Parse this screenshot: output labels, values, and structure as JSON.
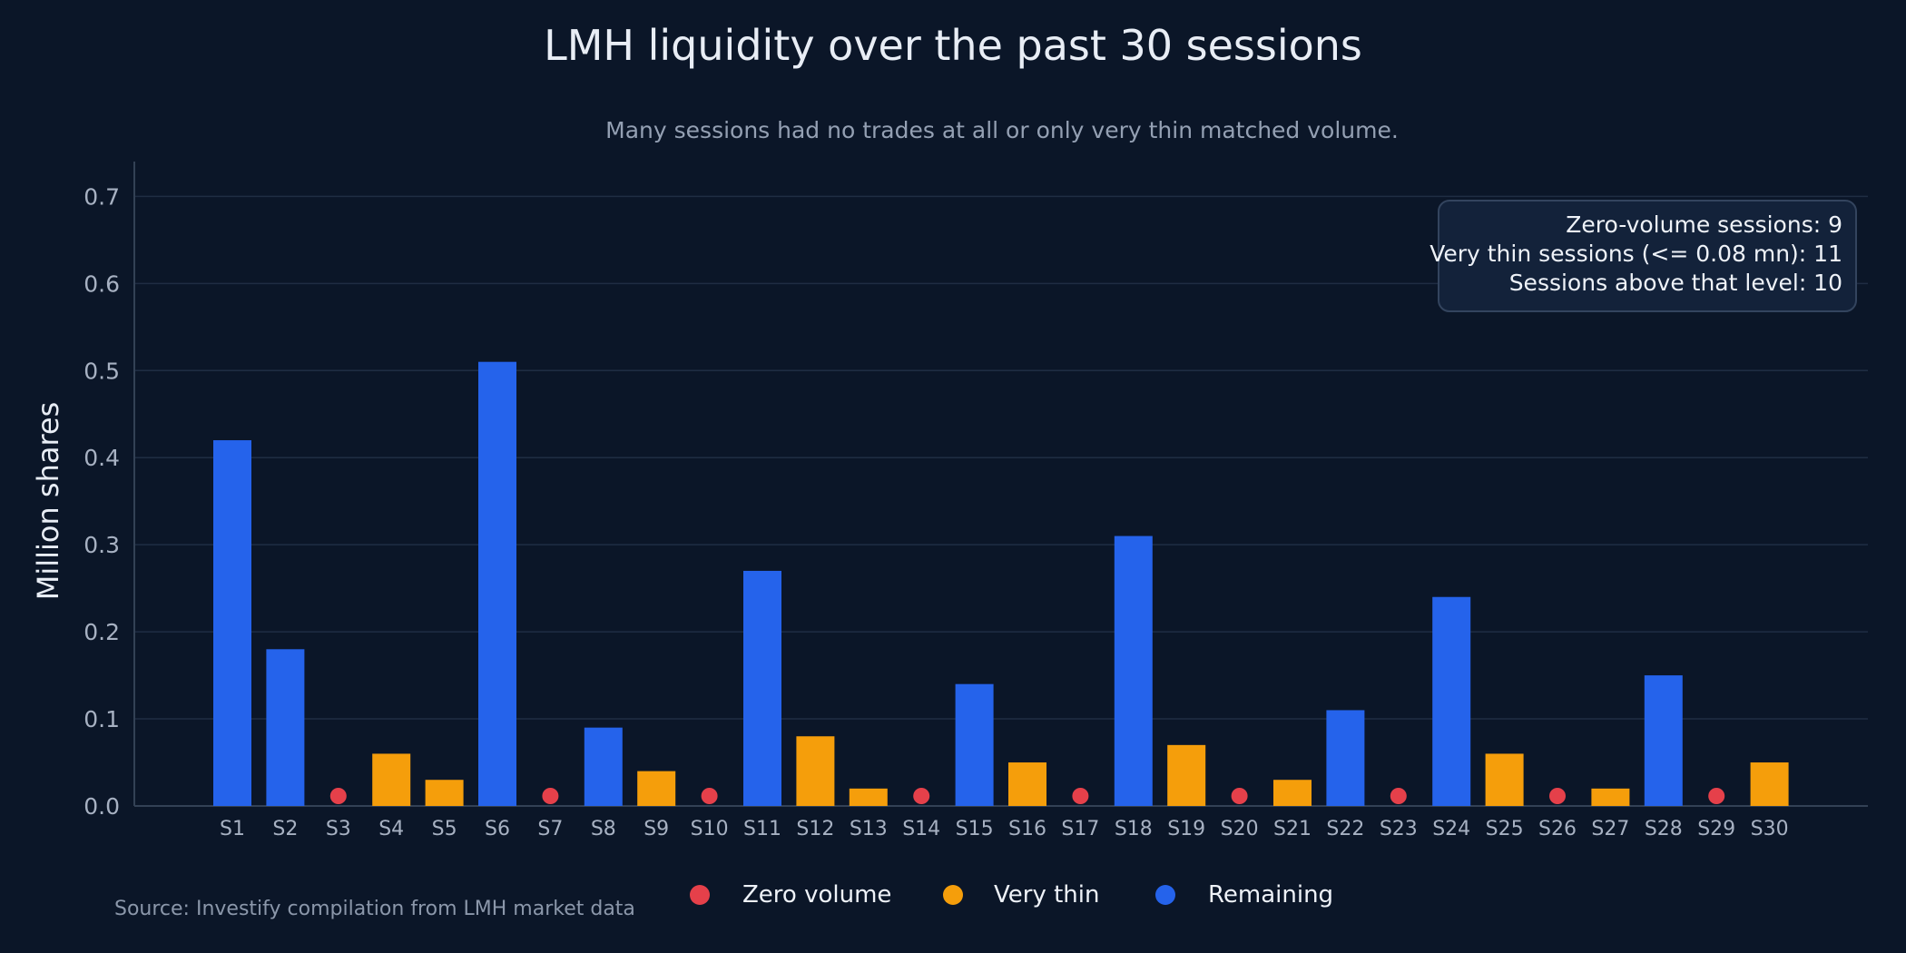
{
  "chart_data": {
    "type": "bar",
    "title": "LMH liquidity over the past 30 sessions",
    "subtitle": "Many sessions had no trades at all or only very thin matched volume.",
    "ylabel": "Million shares",
    "xlabel": "",
    "ylim": [
      0,
      0.74
    ],
    "yticks": [
      "0.0",
      "0.1",
      "0.2",
      "0.3",
      "0.4",
      "0.5",
      "0.6",
      "0.7"
    ],
    "grid": true,
    "categories": [
      "S1",
      "S2",
      "S3",
      "S4",
      "S5",
      "S6",
      "S7",
      "S8",
      "S9",
      "S10",
      "S11",
      "S12",
      "S13",
      "S14",
      "S15",
      "S16",
      "S17",
      "S18",
      "S19",
      "S20",
      "S21",
      "S22",
      "S23",
      "S24",
      "S25",
      "S26",
      "S27",
      "S28",
      "S29",
      "S30"
    ],
    "values": [
      0.42,
      0.18,
      0,
      0.06,
      0.03,
      0.51,
      0,
      0.09,
      0.04,
      0,
      0.27,
      0.08,
      0.02,
      0,
      0.14,
      0.05,
      0,
      0.31,
      0.07,
      0,
      0.03,
      0.11,
      0,
      0.24,
      0.06,
      0,
      0.02,
      0.15,
      0,
      0.05
    ],
    "groups": [
      "Remaining",
      "Remaining",
      "Zero volume",
      "Very thin",
      "Very thin",
      "Remaining",
      "Zero volume",
      "Remaining",
      "Very thin",
      "Zero volume",
      "Remaining",
      "Very thin",
      "Very thin",
      "Zero volume",
      "Remaining",
      "Very thin",
      "Zero volume",
      "Remaining",
      "Very thin",
      "Zero volume",
      "Very thin",
      "Remaining",
      "Zero volume",
      "Remaining",
      "Very thin",
      "Zero volume",
      "Very thin",
      "Remaining",
      "Zero volume",
      "Very thin"
    ],
    "series": [
      {
        "name": "Zero volume",
        "color": "#e5404a",
        "marker": "circle"
      },
      {
        "name": "Very thin",
        "color": "#f59e0b",
        "marker": "bar"
      },
      {
        "name": "Remaining",
        "color": "#2563eb",
        "marker": "bar"
      }
    ],
    "legend_position": "bottom-center",
    "annotation": {
      "lines": [
        "Zero-volume sessions: 9",
        "Very thin sessions (<= 0.08 mn): 11",
        "Sessions above that level: 10"
      ],
      "position": "top-right"
    },
    "source": "Source: Investify compilation from LMH market data"
  }
}
